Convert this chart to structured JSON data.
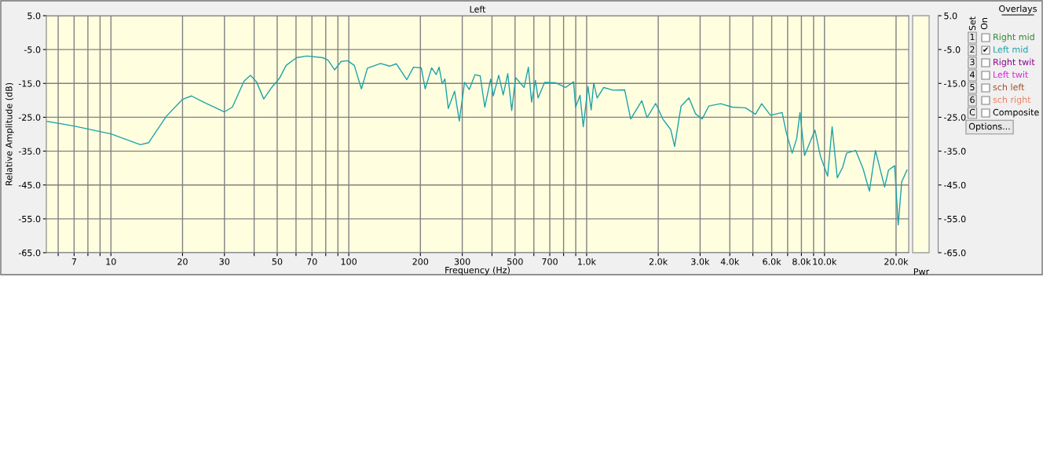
{
  "chart_data": {
    "type": "line",
    "title": "Left",
    "xlabel": "Frequency (Hz)",
    "ylabel": "Relative Amplitude (dB)",
    "log": "x",
    "grid": true,
    "marker": "none",
    "line_style": "solid",
    "xlim": [
      5.35,
      22600
    ],
    "ylim": [
      -65,
      5
    ],
    "y2lim": [
      -65,
      5
    ],
    "xticks": [
      {
        "value": 6,
        "label": null
      },
      7,
      {
        "value": 8,
        "label": null
      },
      {
        "value": 9,
        "label": null
      },
      10,
      20,
      30,
      {
        "value": 40,
        "label": null
      },
      50,
      {
        "value": 60,
        "label": null
      },
      70,
      {
        "value": 80,
        "label": null
      },
      {
        "value": 90,
        "label": null
      },
      100,
      200,
      300,
      {
        "value": 400,
        "label": null
      },
      500,
      {
        "value": 600,
        "label": null
      },
      700,
      {
        "value": 800,
        "label": null
      },
      {
        "value": 900,
        "label": null
      },
      {
        "value": 1000,
        "label": "1.0k"
      },
      {
        "value": 2000,
        "label": "2.0k"
      },
      {
        "value": 3000,
        "label": "3.0k"
      },
      {
        "value": 4000,
        "label": "4.0k"
      },
      {
        "value": 5000,
        "label": null
      },
      {
        "value": 6000,
        "label": "6.0k"
      },
      {
        "value": 7000,
        "label": null
      },
      {
        "value": 8000,
        "label": "8.0k"
      },
      {
        "value": 9000,
        "label": null
      },
      {
        "value": 10000,
        "label": "10.0k"
      },
      {
        "value": 20000,
        "label": "20.0k"
      }
    ],
    "yticks": [
      {
        "value": 5,
        "label": "5.0"
      },
      {
        "value": -5,
        "label": "-5.0"
      },
      {
        "value": -15,
        "label": "-15.0"
      },
      {
        "value": -25,
        "label": "-25.0"
      },
      {
        "value": -35,
        "label": "-35.0"
      },
      {
        "value": -45,
        "label": "-45.0"
      },
      {
        "value": -55,
        "label": "-55.0"
      },
      {
        "value": -65,
        "label": "-65.0"
      }
    ],
    "y2ticks": [
      {
        "value": 5,
        "label": "5.0"
      },
      {
        "value": -5,
        "label": "-5.0"
      },
      {
        "value": -15,
        "label": "-15.0"
      },
      {
        "value": -25,
        "label": "-25.0"
      },
      {
        "value": -35,
        "label": "-35.0"
      },
      {
        "value": -45,
        "label": "-45.0"
      },
      {
        "value": -55,
        "label": "-55.0"
      },
      {
        "value": -65,
        "label": "-65.0"
      }
    ],
    "annotations": [
      "Pwr",
      "Overlays",
      "Set",
      "On",
      "1",
      "Right mid",
      "2",
      "3",
      "Right twit",
      "4",
      "Left twit",
      "5",
      "sch left",
      "6",
      "sch right",
      "C",
      "Composite",
      "Options...",
      "✔"
    ],
    "series": [
      {
        "name": "Left mid",
        "color": "#1ea3a8",
        "x": [
          5.4,
          7,
          10,
          13.3,
          14.4,
          17.1,
          20,
          21.8,
          25.1,
          30,
          32.4,
          36.3,
          38.6,
          40.9,
          43.9,
          47.4,
          51.1,
          54.5,
          60.3,
          66.7,
          77.8,
          81.8,
          87.2,
          92.9,
          99,
          105.5,
          113,
          119.8,
          136,
          148.6,
          158.5,
          175.4,
          187,
          201.7,
          209.5,
          223,
          233,
          239.7,
          247,
          253.5,
          262,
          278.5,
          291.5,
          306.8,
          321,
          339.5,
          357,
          373,
          395,
          405,
          427,
          446,
          466,
          484,
          503,
          546,
          569,
          587,
          609,
          625,
          666,
          738,
          816,
          881,
          899,
          938,
          968,
          1013,
          1045,
          1071,
          1107,
          1180,
          1289,
          1445,
          1532,
          1706,
          1795,
          1951,
          2090,
          2256,
          2344,
          2445,
          2496,
          2692,
          2871,
          3061,
          3260,
          3656,
          4100,
          4655,
          5125,
          5447,
          5925,
          6640,
          6900,
          7315,
          7640,
          7890,
          8245,
          9120,
          9600,
          10310,
          10770,
          11320,
          11920,
          12390,
          13530,
          14530,
          15450,
          16380,
          17900,
          18590,
          19720,
          20420,
          21120,
          22230
        ],
        "values": [
          -26.2,
          -27.6,
          -29.9,
          -33.1,
          -32.5,
          -24.7,
          -19.7,
          -18.7,
          -20.9,
          -23.4,
          -22.0,
          -14.3,
          -12.6,
          -14.5,
          -19.6,
          -16.2,
          -13.5,
          -9.7,
          -7.4,
          -6.9,
          -7.4,
          -8.1,
          -11.0,
          -8.5,
          -8.3,
          -9.7,
          -16.6,
          -10.5,
          -9.1,
          -9.9,
          -9.2,
          -13.9,
          -10.2,
          -10.4,
          -16.6,
          -10.4,
          -12.4,
          -10.2,
          -15.1,
          -13.7,
          -22.4,
          -17.3,
          -26.1,
          -14.7,
          -16.8,
          -12.4,
          -12.8,
          -22.0,
          -13.7,
          -18.7,
          -12.6,
          -18.4,
          -12.1,
          -23.0,
          -13.3,
          -16.2,
          -10.2,
          -20.5,
          -14.1,
          -19.3,
          -14.7,
          -14.8,
          -16.2,
          -14.5,
          -22.0,
          -18.5,
          -27.8,
          -15.9,
          -22.8,
          -14.9,
          -19.3,
          -16.2,
          -17.0,
          -16.9,
          -25.5,
          -20.1,
          -25.1,
          -20.9,
          -25.5,
          -28.6,
          -33.6,
          -25.5,
          -21.7,
          -19.3,
          -24.0,
          -25.5,
          -21.7,
          -21.0,
          -22.0,
          -22.2,
          -24.1,
          -21.0,
          -24.4,
          -23.6,
          -29.4,
          -35.6,
          -31.3,
          -23.6,
          -36.3,
          -28.8,
          -36.3,
          -42.4,
          -27.8,
          -42.9,
          -39.8,
          -35.6,
          -34.8,
          -40.2,
          -46.8,
          -34.8,
          -45.6,
          -40.6,
          -39.3,
          -56.8,
          -44.1,
          -40.6
        ]
      }
    ]
  }
}
